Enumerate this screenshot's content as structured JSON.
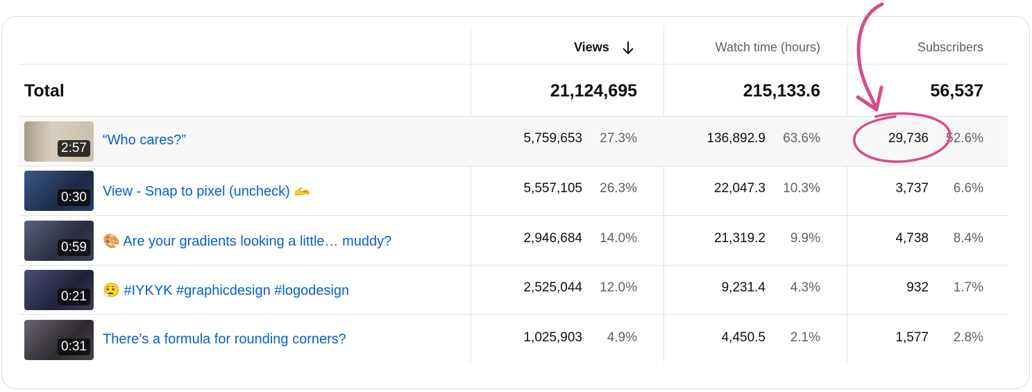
{
  "columns": {
    "views": "Views",
    "watch_time": "Watch time (hours)",
    "subscribers": "Subscribers"
  },
  "total": {
    "label": "Total",
    "views": "21,124,695",
    "watch_time": "215,133.6",
    "subscribers": "56,537"
  },
  "rows": [
    {
      "duration": "2:57",
      "title": "“Who cares?”",
      "views": "5,759,653",
      "views_pct": "27.3%",
      "watch": "136,892.9",
      "watch_pct": "63.6%",
      "subs": "29,736",
      "subs_pct": "52.6%"
    },
    {
      "duration": "0:30",
      "title": "View - Snap to pixel (uncheck) 🫴",
      "views": "5,557,105",
      "views_pct": "26.3%",
      "watch": "22,047.3",
      "watch_pct": "10.3%",
      "subs": "3,737",
      "subs_pct": "6.6%"
    },
    {
      "duration": "0:59",
      "title": "🎨 Are your gradients looking a little… muddy?",
      "views": "2,946,684",
      "views_pct": "14.0%",
      "watch": "21,319.2",
      "watch_pct": "9.9%",
      "subs": "4,738",
      "subs_pct": "8.4%"
    },
    {
      "duration": "0:21",
      "title": "😮‍💨 #IYKYK #graphicdesign #logodesign",
      "views": "2,525,044",
      "views_pct": "12.0%",
      "watch": "9,231.4",
      "watch_pct": "4.3%",
      "subs": "932",
      "subs_pct": "1.7%"
    },
    {
      "duration": "0:31",
      "title": "There’s a formula for rounding corners?",
      "views": "1,025,903",
      "views_pct": "4.9%",
      "watch": "4,450.5",
      "watch_pct": "2.1%",
      "subs": "1,577",
      "subs_pct": "2.8%"
    }
  ],
  "colors": {
    "link": "#065fd4",
    "annotation": "#d94b8a",
    "highlight_row": "#f8f8f8"
  },
  "icons": {
    "sort": "arrow-down-icon"
  }
}
